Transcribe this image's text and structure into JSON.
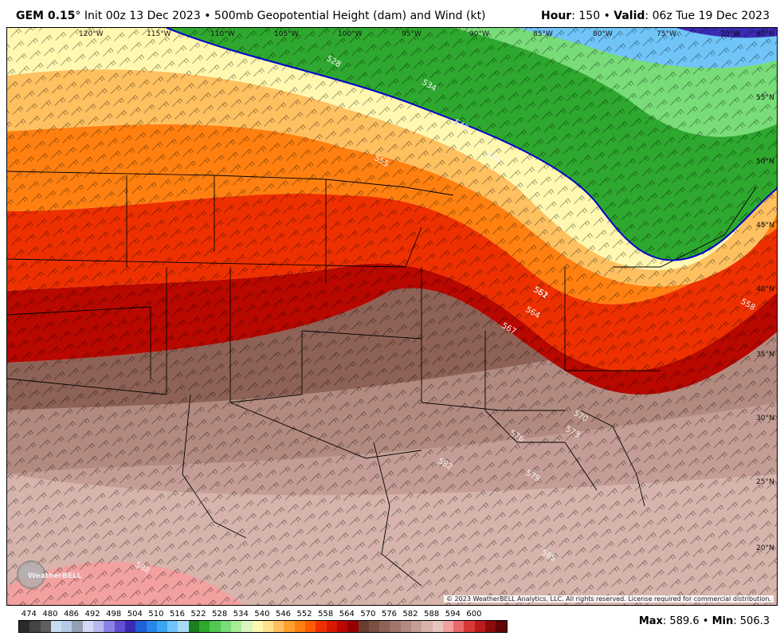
{
  "header": {
    "model": "GEM 0.15",
    "degree": "°",
    "init": "Init 00z 13 Dec 2023",
    "bullet": "•",
    "product": "500mb Geopotential Height (dam) and Wind (kt)",
    "hour_label": "Hour",
    "hour_value": ": 150",
    "valid_label": "Valid",
    "valid_value": ": 06z Tue 19 Dec 2023"
  },
  "map": {
    "longitude_labels": [
      "120°W",
      "115°W",
      "110°W",
      "105°W",
      "100°W",
      "95°W",
      "90°W",
      "85°W",
      "80°W",
      "75°W",
      "70°W"
    ],
    "latitude_labels": [
      "50°N",
      "45°N",
      "40°N",
      "35°N",
      "30°N",
      "25°N",
      "20°N",
      "55°N",
      "60°N"
    ],
    "contour_labels": [
      "528",
      "534",
      "540",
      "546",
      "552",
      "555",
      "558",
      "561",
      "564",
      "567",
      "570",
      "573",
      "576",
      "579",
      "582",
      "585",
      "588"
    ],
    "copyright": "© 2023 WeatherBELL Analytics, LLC. All rights reserved. License required for commercial distribution.",
    "logo_text": "WeatherBELL"
  },
  "colorbar": {
    "labels": [
      "474",
      "480",
      "486",
      "492",
      "498",
      "504",
      "510",
      "516",
      "522",
      "528",
      "534",
      "540",
      "546",
      "552",
      "558",
      "564",
      "570",
      "576",
      "582",
      "588",
      "594",
      "600"
    ],
    "colors": [
      "#2a2a2a",
      "#444444",
      "#5e5e5e",
      "#c8dcf0",
      "#b4c8e8",
      "#96a0b4",
      "#d6d8f6",
      "#b8b8f0",
      "#8a80e6",
      "#6050d0",
      "#3a2ab4",
      "#2060d8",
      "#2a86ea",
      "#3ca6f2",
      "#70c4f8",
      "#a8dcfa",
      "#1c7e1c",
      "#2ea82e",
      "#50c850",
      "#78dc78",
      "#a8ec98",
      "#d8f6c0",
      "#fff8b0",
      "#ffe28a",
      "#ffc060",
      "#ffa030",
      "#ff8010",
      "#ff5a00",
      "#ee3000",
      "#d81800",
      "#b80800",
      "#960000",
      "#6a3c30",
      "#7c4e42",
      "#8e6256",
      "#a0766a",
      "#b28a80",
      "#c49e96",
      "#d6b4ac",
      "#e6c6c0",
      "#f2a0a0",
      "#e86a6a",
      "#d83838",
      "#b81c1c",
      "#8c0c0c",
      "#600404"
    ]
  },
  "stats": {
    "max_label": "Max",
    "max_value": ": 589.6",
    "bullet": "•",
    "min_label": "Min",
    "min_value": ": 506.3"
  }
}
